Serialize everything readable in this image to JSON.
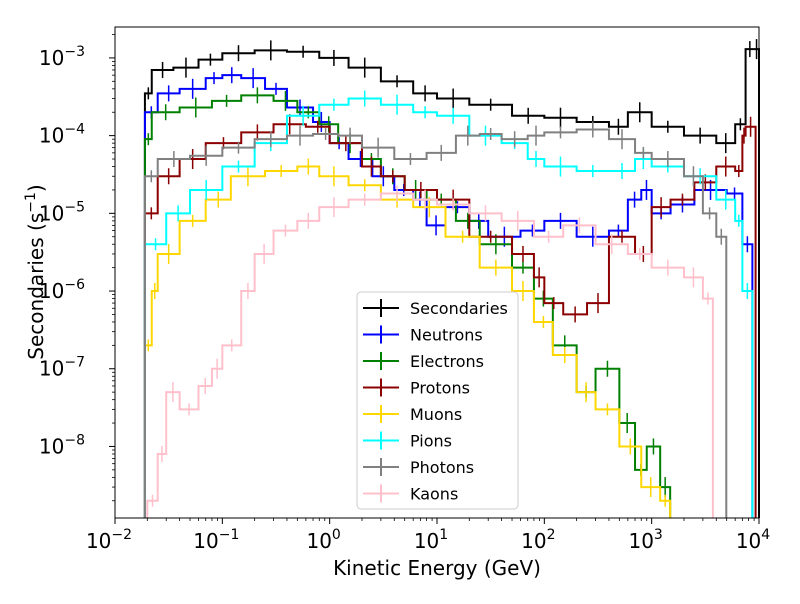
{
  "chart_data": {
    "type": "line",
    "title": "",
    "xlabel": "Kinetic Energy (GeV)",
    "ylabel": {
      "text": "Secondaries (s",
      "sup": "−1",
      "close": ")"
    },
    "xscale": "log",
    "yscale": "log",
    "xlim": [
      0.01,
      10000
    ],
    "ylim": [
      1.2e-09,
      0.0025
    ],
    "x_ticks": [
      {
        "value": 0.01,
        "base": "10",
        "exp": "−2"
      },
      {
        "value": 0.1,
        "base": "10",
        "exp": "−1"
      },
      {
        "value": 1,
        "base": "10",
        "exp": "0"
      },
      {
        "value": 10,
        "base": "10",
        "exp": "1"
      },
      {
        "value": 100,
        "base": "10",
        "exp": "2"
      },
      {
        "value": 1000,
        "base": "10",
        "exp": "3"
      },
      {
        "value": 10000,
        "base": "10",
        "exp": "4"
      }
    ],
    "y_ticks": [
      {
        "value": 1e-08,
        "base": "10",
        "exp": "−8"
      },
      {
        "value": 1e-07,
        "base": "10",
        "exp": "−7"
      },
      {
        "value": 1e-06,
        "base": "10",
        "exp": "−6"
      },
      {
        "value": 1e-05,
        "base": "10",
        "exp": "−5"
      },
      {
        "value": 0.0001,
        "base": "10",
        "exp": "−4"
      },
      {
        "value": 0.001,
        "base": "10",
        "exp": "−3"
      }
    ],
    "legend_position": "bottom-center",
    "series": [
      {
        "name": "Secondaries",
        "color": "#000000",
        "points": [
          [
            0.019,
            0.00035
          ],
          [
            0.022,
            0.0007
          ],
          [
            0.035,
            0.00075
          ],
          [
            0.06,
            0.00095
          ],
          [
            0.1,
            0.00115
          ],
          [
            0.2,
            0.00125
          ],
          [
            0.4,
            0.0012
          ],
          [
            0.8,
            0.001
          ],
          [
            1.5,
            0.00075
          ],
          [
            3,
            0.0005
          ],
          [
            6,
            0.00035
          ],
          [
            10,
            0.0003
          ],
          [
            20,
            0.00025
          ],
          [
            50,
            0.00018
          ],
          [
            100,
            0.00017
          ],
          [
            200,
            0.00015
          ],
          [
            400,
            0.00013
          ],
          [
            600,
            0.0002
          ],
          [
            1000,
            0.00013
          ],
          [
            2000,
            0.0001
          ],
          [
            4000,
            8e-05
          ],
          [
            6000,
            0.00014
          ],
          [
            7500,
            0.0013
          ],
          [
            9000,
            0.0013
          ]
        ]
      },
      {
        "name": "Neutrons",
        "color": "#0000ff",
        "points": [
          [
            0.019,
            0.0002
          ],
          [
            0.025,
            0.00035
          ],
          [
            0.04,
            0.0004
          ],
          [
            0.07,
            0.00055
          ],
          [
            0.1,
            0.0006
          ],
          [
            0.15,
            0.00055
          ],
          [
            0.25,
            0.0004
          ],
          [
            0.4,
            0.00023
          ],
          [
            0.7,
            0.00015
          ],
          [
            1.0,
            8e-05
          ],
          [
            1.5,
            5e-05
          ],
          [
            2.5,
            3e-05
          ],
          [
            4,
            2e-05
          ],
          [
            6,
            1.5e-05
          ],
          [
            8,
            7e-06
          ],
          [
            12,
            1.2e-05
          ],
          [
            20,
            8e-06
          ],
          [
            30,
            5e-06
          ],
          [
            60,
            6e-06
          ],
          [
            100,
            8e-06
          ],
          [
            200,
            5e-06
          ],
          [
            400,
            6e-06
          ],
          [
            600,
            1.5e-05
          ],
          [
            800,
            2e-05
          ],
          [
            1000,
            1e-05
          ],
          [
            1500,
            1.3e-05
          ],
          [
            2500,
            2e-05
          ],
          [
            5000,
            1.8e-05
          ],
          [
            7000,
            4e-06
          ]
        ]
      },
      {
        "name": "Electrons",
        "color": "#008000",
        "points": [
          [
            0.019,
            9e-05
          ],
          [
            0.022,
            0.0002
          ],
          [
            0.04,
            0.00023
          ],
          [
            0.08,
            0.00028
          ],
          [
            0.15,
            0.00033
          ],
          [
            0.3,
            0.00028
          ],
          [
            0.5,
            0.0002
          ],
          [
            0.8,
            0.00014
          ],
          [
            1.2,
            8e-05
          ],
          [
            2,
            5e-05
          ],
          [
            3,
            3e-05
          ],
          [
            5,
            2e-05
          ],
          [
            8,
            1.5e-05
          ],
          [
            15,
            8e-06
          ],
          [
            25,
            4e-06
          ],
          [
            50,
            2e-06
          ],
          [
            80,
            8e-07
          ],
          [
            120,
            2e-07
          ],
          [
            200,
            5e-08
          ],
          [
            300,
            1e-07
          ],
          [
            500,
            2e-08
          ],
          [
            700,
            5e-09
          ],
          [
            900,
            1e-08
          ],
          [
            1200,
            3e-09
          ]
        ]
      },
      {
        "name": "Protons",
        "color": "#8b0000",
        "points": [
          [
            0.019,
            1e-05
          ],
          [
            0.025,
            3e-05
          ],
          [
            0.04,
            5e-05
          ],
          [
            0.07,
            8e-05
          ],
          [
            0.15,
            0.00011
          ],
          [
            0.3,
            0.00014
          ],
          [
            0.6,
            0.00013
          ],
          [
            1,
            8e-05
          ],
          [
            2,
            4e-05
          ],
          [
            3,
            3e-05
          ],
          [
            5,
            2e-05
          ],
          [
            10,
            1.5e-05
          ],
          [
            20,
            5e-06
          ],
          [
            50,
            3e-06
          ],
          [
            80,
            1.5e-06
          ],
          [
            100,
            7e-07
          ],
          [
            150,
            5e-07
          ],
          [
            250,
            7e-07
          ],
          [
            400,
            5e-06
          ],
          [
            700,
            3e-06
          ],
          [
            1000,
            1.2e-05
          ],
          [
            1500,
            1.5e-05
          ],
          [
            2500,
            2.5e-05
          ],
          [
            4000,
            4e-05
          ],
          [
            6000,
            3.5e-05
          ],
          [
            7000,
            0.0001
          ],
          [
            7500,
            0.00013
          ]
        ]
      },
      {
        "name": "Muons",
        "color": "#ffd700",
        "points": [
          [
            0.019,
            2e-07
          ],
          [
            0.022,
            1e-06
          ],
          [
            0.025,
            3e-06
          ],
          [
            0.04,
            8e-06
          ],
          [
            0.07,
            1.5e-05
          ],
          [
            0.12,
            3e-05
          ],
          [
            0.25,
            3.5e-05
          ],
          [
            0.5,
            4e-05
          ],
          [
            0.8,
            3e-05
          ],
          [
            1.5,
            2.3e-05
          ],
          [
            3,
            1.5e-05
          ],
          [
            6,
            1.2e-05
          ],
          [
            12,
            5e-06
          ],
          [
            25,
            2e-06
          ],
          [
            50,
            1e-06
          ],
          [
            80,
            4e-07
          ],
          [
            120,
            1.5e-07
          ],
          [
            200,
            5e-08
          ],
          [
            300,
            3e-08
          ],
          [
            500,
            1e-08
          ],
          [
            800,
            3e-09
          ],
          [
            1200,
            2e-09
          ]
        ]
      },
      {
        "name": "Pions",
        "color": "#00ffff",
        "points": [
          [
            0.019,
            4e-06
          ],
          [
            0.03,
            1e-05
          ],
          [
            0.05,
            2e-05
          ],
          [
            0.1,
            4e-05
          ],
          [
            0.2,
            8e-05
          ],
          [
            0.4,
            0.00018
          ],
          [
            0.8,
            0.00025
          ],
          [
            1.5,
            0.0003
          ],
          [
            3,
            0.00025
          ],
          [
            6,
            0.0002
          ],
          [
            10,
            0.00018
          ],
          [
            20,
            0.0001
          ],
          [
            40,
            8e-05
          ],
          [
            70,
            5e-05
          ],
          [
            100,
            4e-05
          ],
          [
            200,
            3.5e-05
          ],
          [
            400,
            3.5e-05
          ],
          [
            700,
            5e-05
          ],
          [
            1000,
            4e-05
          ],
          [
            2000,
            3e-05
          ],
          [
            4000,
            1.5e-05
          ],
          [
            6000,
            8e-06
          ],
          [
            7000,
            1e-06
          ]
        ]
      },
      {
        "name": "Photons",
        "color": "#808080",
        "points": [
          [
            0.019,
            3e-05
          ],
          [
            0.025,
            5e-05
          ],
          [
            0.05,
            5.5e-05
          ],
          [
            0.1,
            7e-05
          ],
          [
            0.2,
            9e-05
          ],
          [
            0.4,
            0.0001
          ],
          [
            0.7,
            0.000105
          ],
          [
            1.2,
            0.0001
          ],
          [
            2,
            7e-05
          ],
          [
            4,
            5e-05
          ],
          [
            8,
            6e-05
          ],
          [
            15,
            0.0001
          ],
          [
            25,
            0.000105
          ],
          [
            40,
            9e-05
          ],
          [
            70,
            0.0001
          ],
          [
            100,
            0.00011
          ],
          [
            200,
            0.00012
          ],
          [
            400,
            9e-05
          ],
          [
            700,
            6e-05
          ],
          [
            1000,
            5e-05
          ],
          [
            2000,
            3e-05
          ],
          [
            3000,
            1e-05
          ],
          [
            4000,
            5e-06
          ]
        ]
      },
      {
        "name": "Kaons",
        "color": "#ffc0cb",
        "points": [
          [
            0.02,
            2e-09
          ],
          [
            0.025,
            8e-09
          ],
          [
            0.03,
            5e-08
          ],
          [
            0.04,
            3e-08
          ],
          [
            0.06,
            6e-08
          ],
          [
            0.08,
            1e-07
          ],
          [
            0.1,
            2e-07
          ],
          [
            0.15,
            1e-06
          ],
          [
            0.2,
            3e-06
          ],
          [
            0.3,
            6e-06
          ],
          [
            0.5,
            8e-06
          ],
          [
            0.8,
            1.2e-05
          ],
          [
            1.5,
            1.5e-05
          ],
          [
            3,
            1.8e-05
          ],
          [
            6,
            1.5e-05
          ],
          [
            10,
            1.3e-05
          ],
          [
            20,
            1e-05
          ],
          [
            40,
            8e-06
          ],
          [
            80,
            5e-06
          ],
          [
            150,
            7e-06
          ],
          [
            300,
            4e-06
          ],
          [
            600,
            3e-06
          ],
          [
            1000,
            2e-06
          ],
          [
            2000,
            1.5e-06
          ],
          [
            3000,
            8e-07
          ]
        ]
      }
    ]
  }
}
